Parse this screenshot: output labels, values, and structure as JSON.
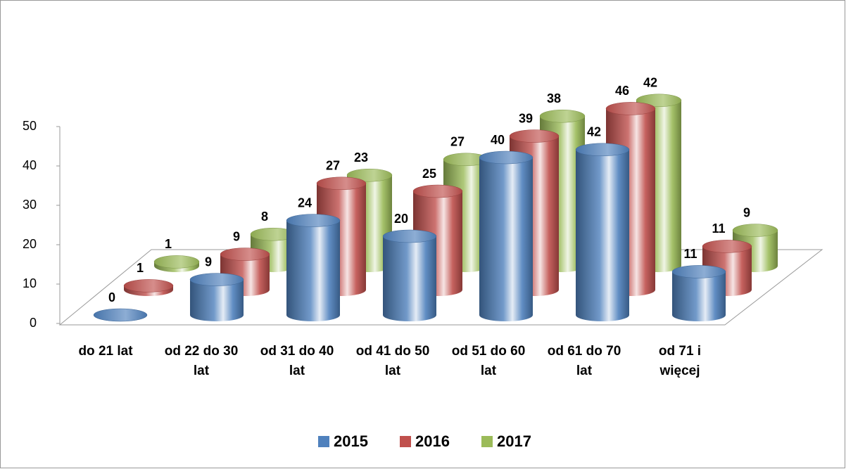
{
  "chart_data": {
    "type": "bar3d",
    "categories": [
      "do 21 lat",
      "od 22 do 30 lat",
      "od 31 do 40 lat",
      "od 41 do 50 lat",
      "od 51 do 60 lat",
      "od 61 do 70 lat",
      "od 71 i więcej"
    ],
    "series": [
      {
        "name": "2015",
        "color": "#4f81bd",
        "values": [
          0,
          9,
          24,
          20,
          40,
          42,
          11
        ]
      },
      {
        "name": "2016",
        "color": "#c0504d",
        "values": [
          1,
          9,
          27,
          25,
          39,
          46,
          11
        ]
      },
      {
        "name": "2017",
        "color": "#9bbb59",
        "values": [
          1,
          8,
          23,
          27,
          38,
          42,
          9
        ]
      }
    ],
    "ylim": [
      0,
      50
    ],
    "yticks": [
      0,
      10,
      20,
      30,
      40,
      50
    ],
    "legend": "bottom"
  }
}
